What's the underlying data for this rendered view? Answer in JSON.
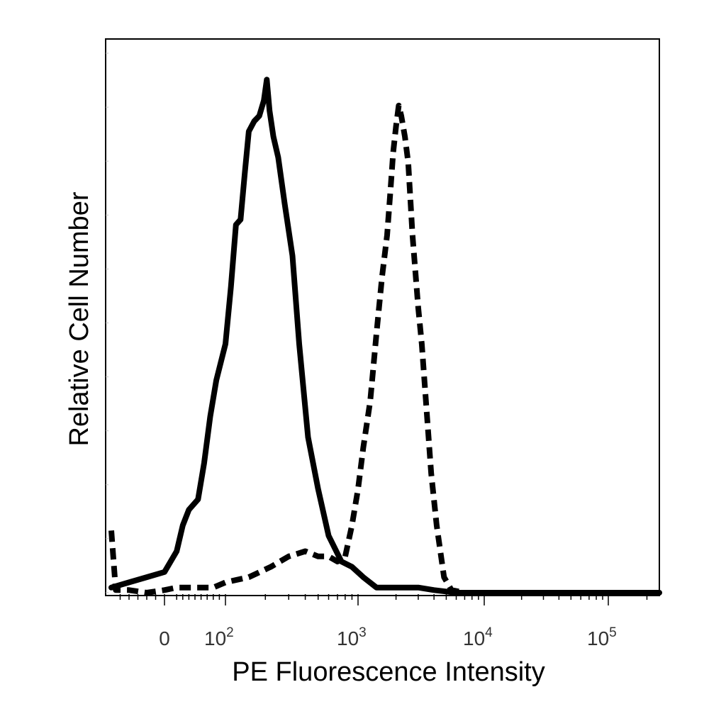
{
  "chart_data": {
    "type": "line",
    "title": "",
    "xlabel": "PE  Fluorescence Intensity",
    "ylabel": "Relative Cell Number",
    "x_scale": "biexponential",
    "xlim": [
      -60,
      250000
    ],
    "ylim": [
      0,
      100
    ],
    "grid": false,
    "legend": "none",
    "x_major_ticks": [
      {
        "value": 0,
        "base": "0",
        "exponent": ""
      },
      {
        "value": 100,
        "base": "10",
        "exponent": "2"
      },
      {
        "value": 1000,
        "base": "10",
        "exponent": "3"
      },
      {
        "value": 10000,
        "base": "10",
        "exponent": "4"
      },
      {
        "value": 100000,
        "base": "10",
        "exponent": "5"
      }
    ],
    "series": [
      {
        "style": "solid",
        "color": "#000000",
        "points": [
          [
            -60,
            1
          ],
          [
            -40,
            2
          ],
          [
            -20,
            3
          ],
          [
            0,
            4
          ],
          [
            20,
            8
          ],
          [
            30,
            13
          ],
          [
            40,
            16
          ],
          [
            55,
            18
          ],
          [
            65,
            25
          ],
          [
            75,
            34
          ],
          [
            85,
            41
          ],
          [
            100,
            48
          ],
          [
            110,
            59
          ],
          [
            120,
            71
          ],
          [
            130,
            72
          ],
          [
            140,
            81
          ],
          [
            150,
            89
          ],
          [
            165,
            91
          ],
          [
            180,
            92
          ],
          [
            195,
            95
          ],
          [
            205,
            99
          ],
          [
            215,
            93
          ],
          [
            230,
            88
          ],
          [
            250,
            84
          ],
          [
            280,
            75
          ],
          [
            320,
            65
          ],
          [
            360,
            48
          ],
          [
            420,
            30
          ],
          [
            500,
            20
          ],
          [
            600,
            11
          ],
          [
            750,
            6
          ],
          [
            900,
            5
          ],
          [
            1100,
            3
          ],
          [
            1400,
            1
          ],
          [
            2000,
            1
          ],
          [
            3000,
            1
          ],
          [
            4000,
            0.5
          ],
          [
            6000,
            0
          ],
          [
            20000,
            0
          ],
          [
            100000,
            0
          ],
          [
            250000,
            0
          ]
        ]
      },
      {
        "style": "dashed",
        "color": "#000000",
        "points": [
          [
            -60,
            12
          ],
          [
            -57,
            5
          ],
          [
            -55,
            0.5
          ],
          [
            -40,
            0.5
          ],
          [
            -20,
            0
          ],
          [
            0,
            0.5
          ],
          [
            20,
            1
          ],
          [
            50,
            1
          ],
          [
            80,
            1
          ],
          [
            100,
            2
          ],
          [
            150,
            3
          ],
          [
            220,
            5
          ],
          [
            300,
            7
          ],
          [
            400,
            8
          ],
          [
            500,
            7
          ],
          [
            600,
            7
          ],
          [
            700,
            6
          ],
          [
            800,
            7
          ],
          [
            900,
            13
          ],
          [
            1000,
            20
          ],
          [
            1100,
            28
          ],
          [
            1250,
            37
          ],
          [
            1400,
            50
          ],
          [
            1550,
            61
          ],
          [
            1700,
            69
          ],
          [
            1800,
            77
          ],
          [
            1900,
            85
          ],
          [
            2000,
            90
          ],
          [
            2100,
            94
          ],
          [
            2200,
            92
          ],
          [
            2350,
            88
          ],
          [
            2500,
            83
          ],
          [
            2700,
            69
          ],
          [
            3000,
            55
          ],
          [
            3200,
            48
          ],
          [
            3500,
            35
          ],
          [
            3800,
            23
          ],
          [
            4200,
            13
          ],
          [
            4800,
            3
          ],
          [
            5500,
            0.5
          ],
          [
            7000,
            0
          ],
          [
            20000,
            0
          ],
          [
            100000,
            0
          ],
          [
            250000,
            0
          ]
        ]
      }
    ]
  }
}
